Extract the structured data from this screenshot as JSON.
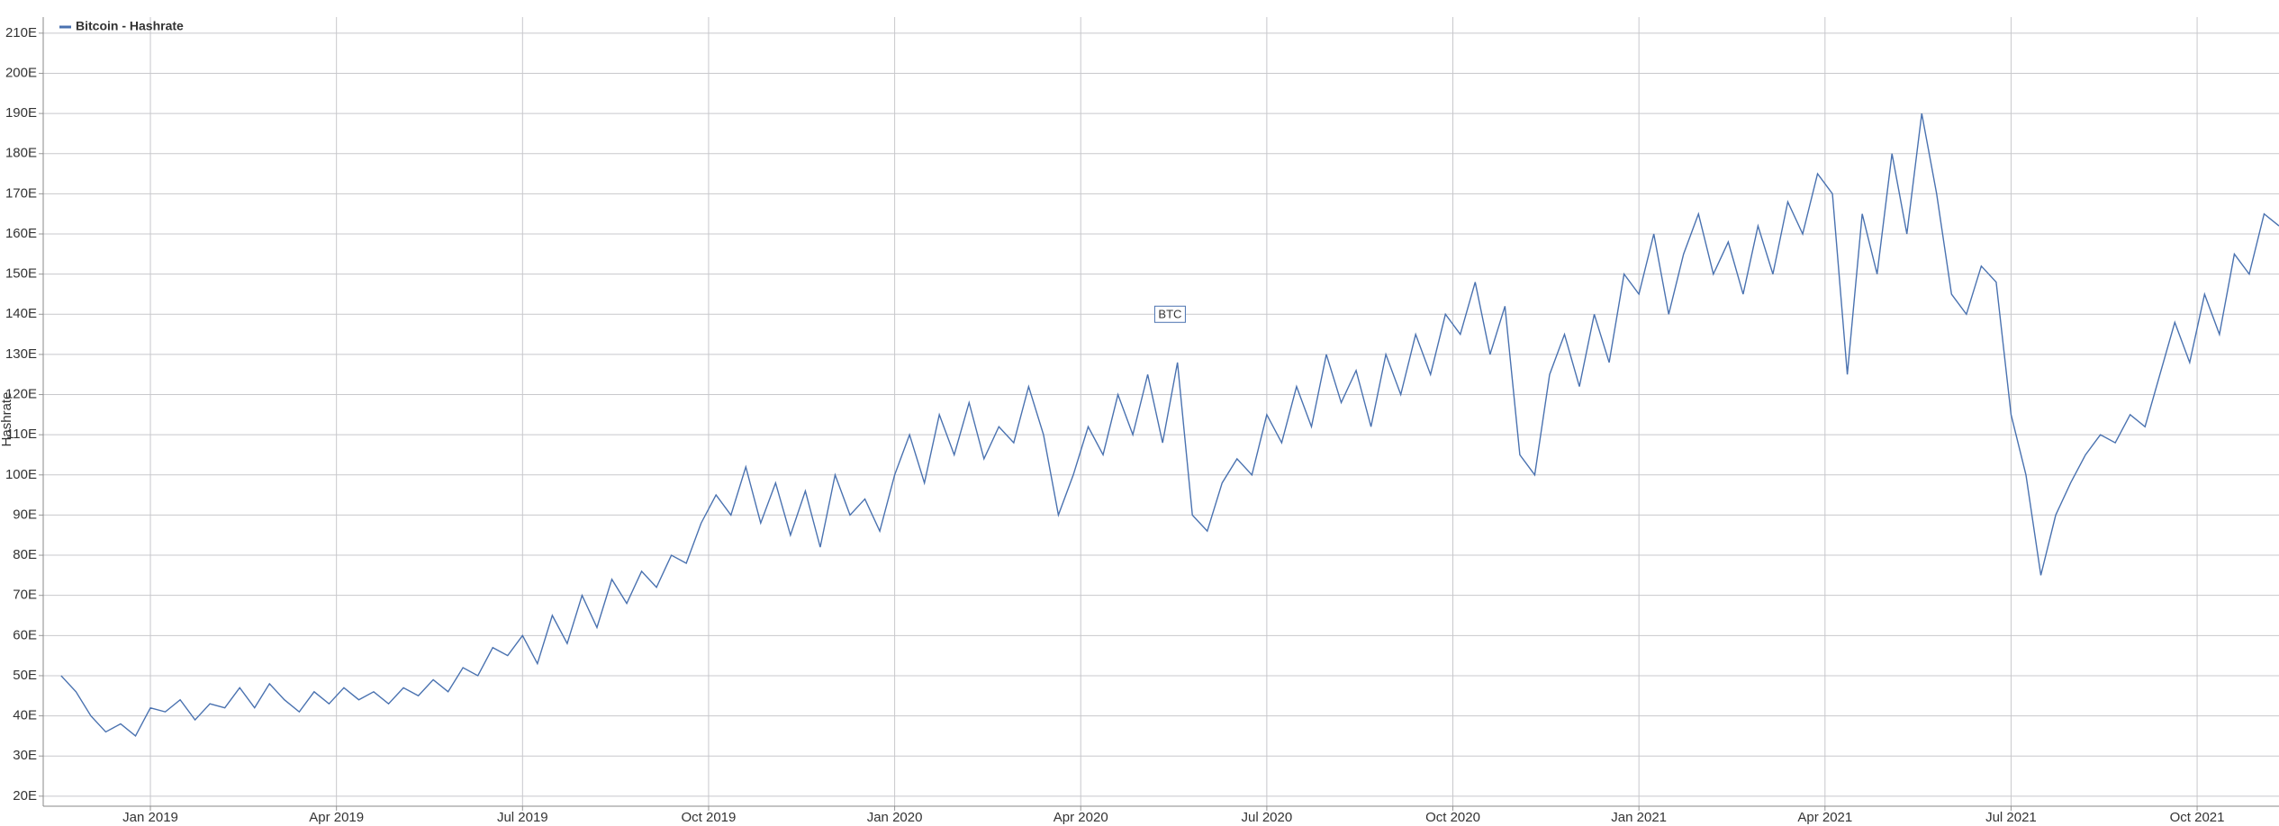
{
  "chart_data": {
    "type": "line",
    "y_label": "Hashrate",
    "legend": "top-left",
    "grid": true,
    "x": [
      2018.88,
      2018.9,
      2018.92,
      2018.94,
      2018.96,
      2018.98,
      2019,
      2019.02,
      2019.04,
      2019.06,
      2019.08,
      2019.1,
      2019.12,
      2019.14,
      2019.16,
      2019.18,
      2019.2,
      2019.22,
      2019.24,
      2019.26,
      2019.28,
      2019.3,
      2019.32,
      2019.34,
      2019.36,
      2019.38,
      2019.4,
      2019.42,
      2019.44,
      2019.46,
      2019.48,
      2019.5,
      2019.52,
      2019.54,
      2019.56,
      2019.58,
      2019.6,
      2019.62,
      2019.64,
      2019.66,
      2019.68,
      2019.7,
      2019.72,
      2019.74,
      2019.76,
      2019.78,
      2019.8,
      2019.82,
      2019.84,
      2019.86,
      2019.88,
      2019.9,
      2019.92,
      2019.94,
      2019.96,
      2019.98,
      2020,
      2020.02,
      2020.04,
      2020.06,
      2020.08,
      2020.1,
      2020.12,
      2020.14,
      2020.16,
      2020.18,
      2020.2,
      2020.22,
      2020.24,
      2020.26,
      2020.28,
      2020.3,
      2020.32,
      2020.34,
      2020.36,
      2020.38,
      2020.4,
      2020.42,
      2020.44,
      2020.46,
      2020.48,
      2020.5,
      2020.52,
      2020.54,
      2020.56,
      2020.58,
      2020.6,
      2020.62,
      2020.64,
      2020.66,
      2020.68,
      2020.7,
      2020.72,
      2020.74,
      2020.76,
      2020.78,
      2020.8,
      2020.82,
      2020.84,
      2020.86,
      2020.88,
      2020.9,
      2020.92,
      2020.94,
      2020.96,
      2020.98,
      2021,
      2021.02,
      2021.04,
      2021.06,
      2021.08,
      2021.1,
      2021.12,
      2021.14,
      2021.16,
      2021.18,
      2021.2,
      2021.22,
      2021.24,
      2021.26,
      2021.28,
      2021.3,
      2021.32,
      2021.34,
      2021.36,
      2021.38,
      2021.4,
      2021.42,
      2021.44,
      2021.46,
      2021.48,
      2021.5,
      2021.52,
      2021.54,
      2021.56,
      2021.58,
      2021.6,
      2021.62,
      2021.64,
      2021.66,
      2021.68,
      2021.7,
      2021.72,
      2021.74,
      2021.76,
      2021.78,
      2021.8,
      2021.82,
      2021.84,
      2021.86
    ],
    "series": [
      {
        "name": "Bitcoin - Hashrate",
        "color": "#4a72b0",
        "values": [
          50,
          46,
          40,
          36,
          38,
          35,
          42,
          41,
          44,
          39,
          43,
          42,
          47,
          42,
          48,
          44,
          41,
          46,
          43,
          47,
          44,
          46,
          43,
          47,
          45,
          49,
          46,
          52,
          50,
          57,
          55,
          60,
          53,
          65,
          58,
          70,
          62,
          74,
          68,
          76,
          72,
          80,
          78,
          88,
          95,
          90,
          102,
          88,
          98,
          85,
          96,
          82,
          100,
          90,
          94,
          86,
          100,
          110,
          98,
          115,
          105,
          118,
          104,
          112,
          108,
          122,
          110,
          90,
          100,
          112,
          105,
          120,
          110,
          125,
          108,
          128,
          90,
          86,
          98,
          104,
          100,
          115,
          108,
          122,
          112,
          130,
          118,
          126,
          112,
          130,
          120,
          135,
          125,
          140,
          135,
          148,
          130,
          142,
          105,
          100,
          125,
          135,
          122,
          140,
          128,
          150,
          145,
          160,
          140,
          155,
          165,
          150,
          158,
          145,
          162,
          150,
          168,
          160,
          175,
          170,
          125,
          165,
          150,
          180,
          160,
          190,
          170,
          145,
          140,
          152,
          148,
          115,
          100,
          75,
          90,
          98,
          105,
          110,
          108,
          115,
          112,
          125,
          138,
          128,
          145,
          135,
          155,
          150,
          165,
          162
        ]
      }
    ],
    "annotations": [
      {
        "text": "BTC",
        "x": 2020.37,
        "y": 140
      }
    ],
    "xlim": [
      2018.856,
      2021.86
    ],
    "xticks": [
      {
        "value": 2019,
        "label": "Jan 2019"
      },
      {
        "value": 2019.25,
        "label": "Apr 2019"
      },
      {
        "value": 2019.5,
        "label": "Jul 2019"
      },
      {
        "value": 2019.75,
        "label": "Oct 2019"
      },
      {
        "value": 2020,
        "label": "Jan 2020"
      },
      {
        "value": 2020.25,
        "label": "Apr 2020"
      },
      {
        "value": 2020.5,
        "label": "Jul 2020"
      },
      {
        "value": 2020.75,
        "label": "Oct 2020"
      },
      {
        "value": 2021,
        "label": "Jan 2021"
      },
      {
        "value": 2021.25,
        "label": "Apr 2021"
      },
      {
        "value": 2021.5,
        "label": "Jul 2021"
      },
      {
        "value": 2021.75,
        "label": "Oct 2021"
      }
    ],
    "ylim": [
      17.5,
      214
    ],
    "yticks": [
      {
        "value": 20,
        "label": "20E"
      },
      {
        "value": 30,
        "label": "30E"
      },
      {
        "value": 40,
        "label": "40E"
      },
      {
        "value": 50,
        "label": "50E"
      },
      {
        "value": 60,
        "label": "60E"
      },
      {
        "value": 70,
        "label": "70E"
      },
      {
        "value": 80,
        "label": "80E"
      },
      {
        "value": 90,
        "label": "90E"
      },
      {
        "value": 100,
        "label": "100E"
      },
      {
        "value": 110,
        "label": "110E"
      },
      {
        "value": 120,
        "label": "120E"
      },
      {
        "value": 130,
        "label": "130E"
      },
      {
        "value": 140,
        "label": "140E"
      },
      {
        "value": 150,
        "label": "150E"
      },
      {
        "value": 160,
        "label": "160E"
      },
      {
        "value": 170,
        "label": "170E"
      },
      {
        "value": 180,
        "label": "180E"
      },
      {
        "value": 190,
        "label": "190E"
      },
      {
        "value": 200,
        "label": "200E"
      },
      {
        "value": 210,
        "label": "210E"
      }
    ]
  }
}
